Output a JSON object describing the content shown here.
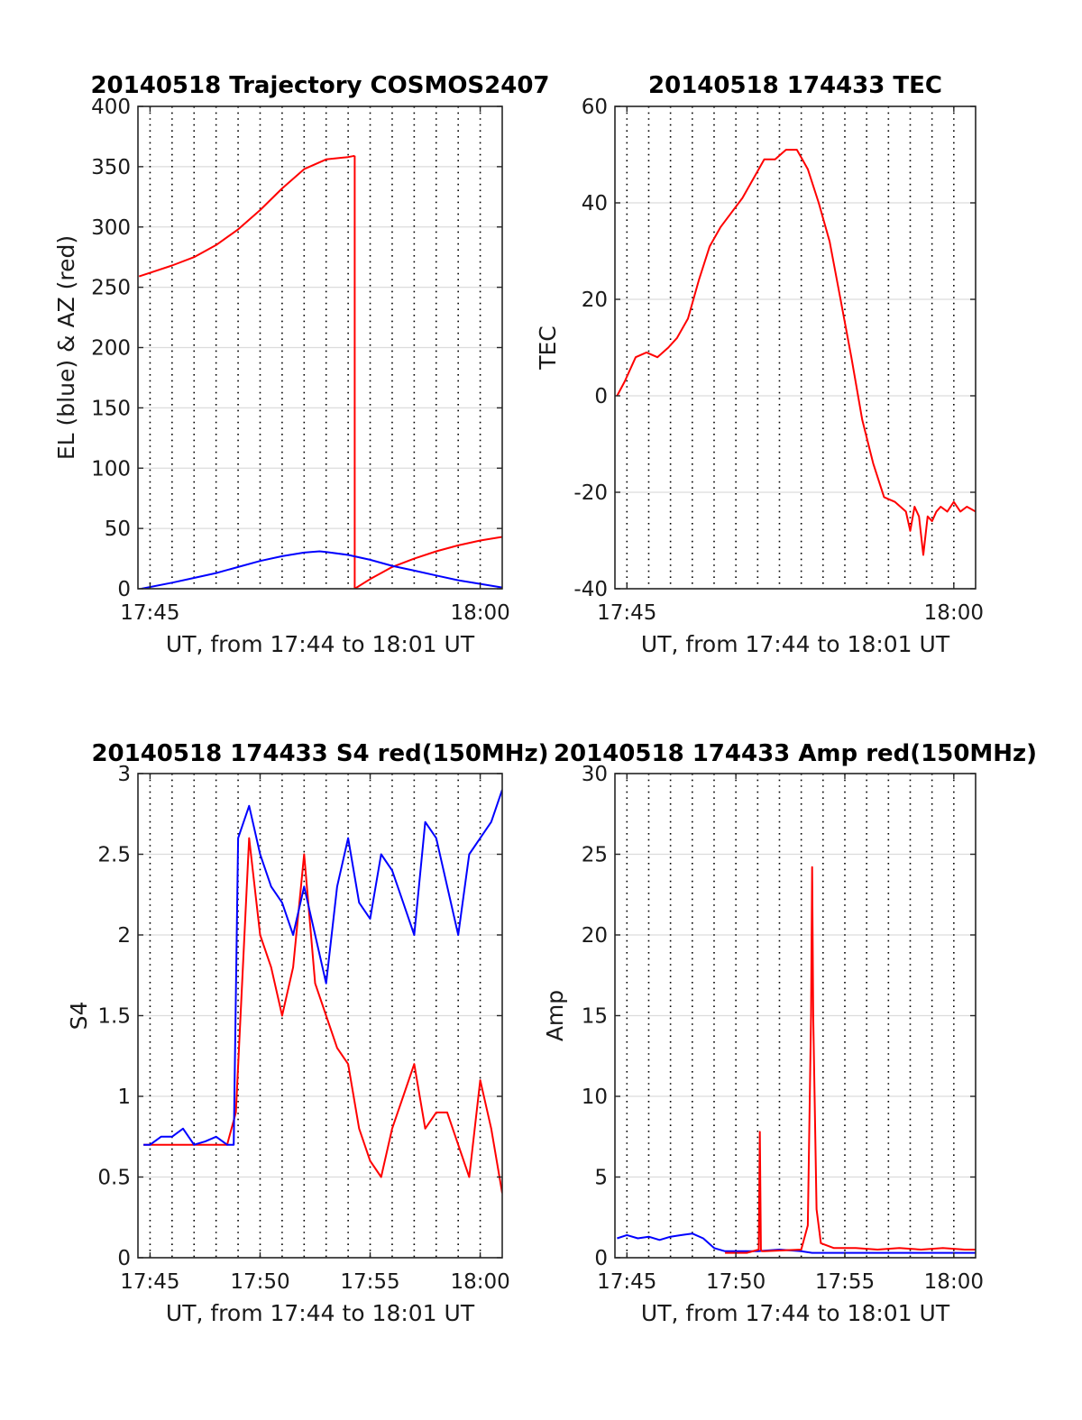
{
  "colors": {
    "red": "#ff0000",
    "blue": "#0000ff",
    "grid": "#dcdcdc",
    "frame": "#262626",
    "vgrid": "#000000"
  },
  "chart_data": [
    {
      "id": "trajectory",
      "type": "line",
      "title": "20140518 Trajectory COSMOS2407",
      "xlabel": "UT, from 17:44 to 18:01 UT",
      "ylabel": "EL (blue) & AZ (red)",
      "x_unit": "minutes after 17:44 UT",
      "xlim": [
        0.45,
        17.0
      ],
      "ylim": [
        0,
        400
      ],
      "yticks": [
        0,
        50,
        100,
        150,
        200,
        250,
        300,
        350,
        400
      ],
      "xticks": [
        {
          "x": 1,
          "label": "17:45"
        },
        {
          "x": 16,
          "label": "18:00"
        }
      ],
      "vgrid_minutes": [
        1,
        2,
        3,
        4,
        5,
        6,
        7,
        8,
        9,
        10,
        11,
        12,
        13,
        14,
        15,
        16
      ],
      "series": [
        {
          "color": "red",
          "x": [
            0.5,
            1,
            2,
            3,
            4,
            5,
            6,
            7,
            8,
            9,
            10,
            10.3
          ],
          "y": [
            259,
            262,
            268,
            275,
            285,
            298,
            314,
            332,
            348,
            356,
            358,
            359
          ]
        },
        {
          "color": "red",
          "x": [
            10.3,
            10.3
          ],
          "y": [
            359,
            0
          ]
        },
        {
          "color": "red",
          "x": [
            10.3,
            11,
            12,
            13,
            14,
            15,
            16,
            17
          ],
          "y": [
            0,
            8,
            18,
            25,
            31,
            36,
            40,
            43
          ]
        },
        {
          "color": "blue",
          "x": [
            0.6,
            2,
            3,
            4,
            5,
            6,
            7,
            8,
            8.7,
            9,
            10,
            11,
            12,
            13,
            14,
            15,
            16,
            17
          ],
          "y": [
            0,
            5,
            9,
            13,
            18,
            23,
            27,
            30,
            31,
            30.5,
            28,
            24,
            19,
            15,
            11,
            7,
            4,
            1
          ]
        }
      ]
    },
    {
      "id": "tec",
      "type": "line",
      "title": "20140518 174433 TEC",
      "xlabel": "UT, from 17:44 to 18:01 UT",
      "ylabel": "TEC",
      "x_unit": "minutes after 17:44 UT",
      "xlim": [
        0.45,
        17.0
      ],
      "ylim": [
        -40,
        60
      ],
      "yticks": [
        -40,
        -20,
        0,
        20,
        40,
        60
      ],
      "xticks": [
        {
          "x": 1,
          "label": "17:45"
        },
        {
          "x": 16,
          "label": "18:00"
        }
      ],
      "vgrid_minutes": [
        1,
        2,
        3,
        4,
        5,
        6,
        7,
        8,
        9,
        10,
        11,
        12,
        13,
        14,
        15,
        16
      ],
      "series": [
        {
          "color": "red",
          "x": [
            0.55,
            0.9,
            1.4,
            1.9,
            2.4,
            2.9,
            3.3,
            3.8,
            4.3,
            4.8,
            5.3,
            5.8,
            6.3,
            6.8,
            7.3,
            7.8,
            8.3,
            8.8,
            9.3,
            9.8,
            10.3,
            10.8,
            11.3,
            11.8,
            12.3,
            12.8,
            13.3,
            13.8,
            14.0,
            14.2,
            14.4,
            14.6,
            14.8,
            15.0,
            15.2,
            15.4,
            15.7,
            16.0,
            16.3,
            16.6,
            17.0
          ],
          "y": [
            0,
            3,
            8,
            9,
            8,
            10,
            12,
            16,
            24,
            31,
            35,
            38,
            41,
            45,
            49,
            49,
            51,
            51,
            47,
            40,
            32,
            20,
            8,
            -5,
            -14,
            -21,
            -22,
            -24,
            -28,
            -23,
            -25,
            -33,
            -25,
            -26,
            -24,
            -23,
            -24,
            -22,
            -24,
            -23,
            -24
          ]
        }
      ]
    },
    {
      "id": "s4",
      "type": "line",
      "title": "20140518 174433 S4 red(150MHz)",
      "xlabel": "UT, from 17:44 to 18:01 UT",
      "ylabel": "S4",
      "x_unit": "minutes after 17:44 UT",
      "xlim": [
        0.45,
        17.0
      ],
      "ylim": [
        0,
        3
      ],
      "yticks": [
        0,
        0.5,
        1,
        1.5,
        2,
        2.5,
        3
      ],
      "ytick_labels": [
        "0",
        "0.5",
        "1",
        "1.5",
        "2",
        "2.5",
        "3"
      ],
      "xticks": [
        {
          "x": 1,
          "label": "17:45"
        },
        {
          "x": 6,
          "label": "17:50"
        },
        {
          "x": 11,
          "label": "17:55"
        },
        {
          "x": 16,
          "label": "18:00"
        }
      ],
      "vgrid_minutes": [
        1,
        2,
        3,
        4,
        5,
        6,
        7,
        8,
        9,
        10,
        11,
        12,
        13,
        14,
        15,
        16
      ],
      "series": [
        {
          "color": "red",
          "x": [
            0.7,
            4.5,
            4.9,
            5.5,
            6.0,
            6.5,
            7.0,
            7.5,
            8.0,
            8.5,
            9.0,
            9.5,
            10.0,
            10.5,
            11.0,
            11.5,
            12.0,
            12.5,
            13.0,
            13.5,
            14.0,
            14.5,
            15.0,
            15.5,
            16.0,
            16.5,
            17.0
          ],
          "y": [
            0.7,
            0.7,
            0.9,
            2.6,
            2.0,
            1.8,
            1.5,
            1.8,
            2.5,
            1.7,
            1.5,
            1.3,
            1.2,
            0.8,
            0.6,
            0.5,
            0.8,
            1.0,
            1.2,
            0.8,
            0.9,
            0.9,
            0.7,
            0.5,
            1.1,
            0.8,
            0.4
          ]
        },
        {
          "color": "blue",
          "x": [
            0.7,
            1.0,
            1.5,
            2.0,
            2.5,
            3.0,
            3.5,
            4.0,
            4.5,
            4.8,
            5.0,
            5.5,
            6.0,
            6.5,
            7.0,
            7.5,
            8.0,
            8.5,
            9.0,
            9.5,
            10.0,
            10.5,
            11.0,
            11.5,
            12.0,
            12.5,
            13.0,
            13.5,
            14.0,
            14.5,
            15.0,
            15.5,
            16.0,
            16.5,
            17.0
          ],
          "y": [
            0.7,
            0.7,
            0.75,
            0.75,
            0.8,
            0.7,
            0.72,
            0.75,
            0.7,
            0.7,
            2.6,
            2.8,
            2.5,
            2.3,
            2.2,
            2.0,
            2.3,
            2.0,
            1.7,
            2.3,
            2.6,
            2.2,
            2.1,
            2.5,
            2.4,
            2.2,
            2.0,
            2.7,
            2.6,
            2.3,
            2.0,
            2.5,
            2.6,
            2.7,
            2.9
          ]
        }
      ]
    },
    {
      "id": "amp",
      "type": "line",
      "title": "20140518 174433 Amp red(150MHz)",
      "xlabel": "UT, from 17:44 to 18:01 UT",
      "ylabel": "Amp",
      "x_unit": "minutes after 17:44 UT",
      "xlim": [
        0.45,
        17.0
      ],
      "ylim": [
        0,
        30
      ],
      "yticks": [
        0,
        5,
        10,
        15,
        20,
        25,
        30
      ],
      "xticks": [
        {
          "x": 1,
          "label": "17:45"
        },
        {
          "x": 6,
          "label": "17:50"
        },
        {
          "x": 11,
          "label": "17:55"
        },
        {
          "x": 16,
          "label": "18:00"
        }
      ],
      "vgrid_minutes": [
        1,
        2,
        3,
        4,
        5,
        6,
        7,
        8,
        9,
        10,
        11,
        12,
        13,
        14,
        15,
        16
      ],
      "series": [
        {
          "color": "blue",
          "x": [
            0.55,
            1.0,
            1.5,
            2.0,
            2.5,
            3.0,
            3.5,
            4.0,
            4.5,
            5.0,
            5.5,
            6.0,
            7.0,
            8.0,
            9.0,
            9.5,
            10.0,
            11.0,
            12.0,
            13.0,
            14.0,
            15.0,
            16.0,
            17.0
          ],
          "y": [
            1.2,
            1.4,
            1.2,
            1.3,
            1.1,
            1.3,
            1.4,
            1.5,
            1.2,
            0.6,
            0.4,
            0.4,
            0.4,
            0.5,
            0.4,
            0.3,
            0.3,
            0.3,
            0.3,
            0.3,
            0.3,
            0.3,
            0.3,
            0.3
          ]
        },
        {
          "color": "red",
          "x": [
            5.5,
            6.5,
            7.05,
            7.1,
            7.15,
            7.2,
            7.3,
            9.0,
            9.3,
            9.45,
            9.5,
            9.55,
            9.7,
            9.9,
            10.5,
            11.5,
            12.5,
            13.5,
            14.5,
            15.5,
            16.5,
            17.0
          ],
          "y": [
            0.3,
            0.3,
            0.5,
            7.8,
            0.5,
            0.4,
            0.4,
            0.5,
            2.0,
            15.0,
            24.2,
            15.0,
            3.0,
            0.9,
            0.6,
            0.6,
            0.5,
            0.6,
            0.5,
            0.6,
            0.5,
            0.5
          ]
        }
      ]
    }
  ]
}
